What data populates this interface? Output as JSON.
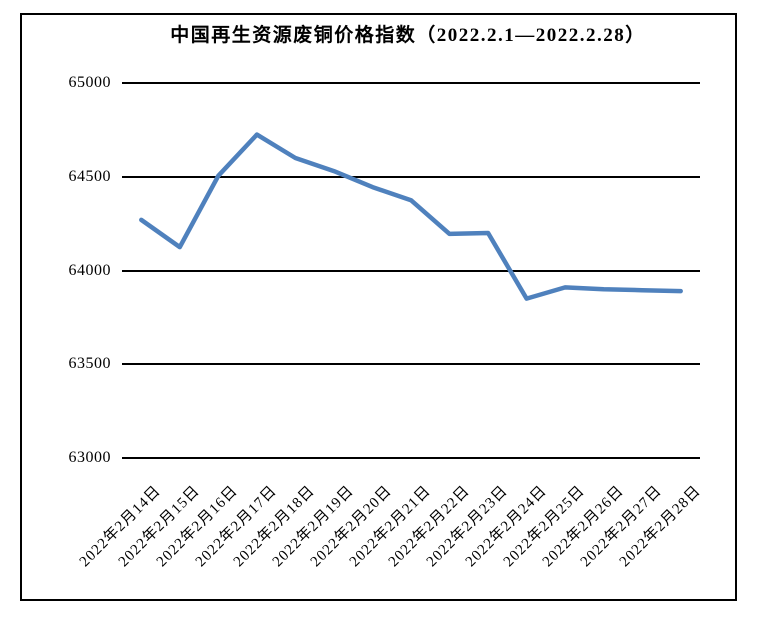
{
  "window": {
    "background": "#ffffff",
    "border_color": "#000000"
  },
  "chart_data": {
    "type": "line",
    "title": "中国再生资源废铜价格指数（2022.2.1—2022.2.28）",
    "categories": [
      "2022年2月14日",
      "2022年2月15日",
      "2022年2月16日",
      "2022年2月17日",
      "2022年2月18日",
      "2022年2月19日",
      "2022年2月20日",
      "2022年2月21日",
      "2022年2月22日",
      "2022年2月23日",
      "2022年2月24日",
      "2022年2月25日",
      "2022年2月26日",
      "2022年2月27日",
      "2022年2月28日"
    ],
    "values": [
      64270,
      64125,
      64505,
      64725,
      64600,
      64530,
      64445,
      64375,
      64195,
      64200,
      63850,
      63910,
      63900,
      63895,
      63890
    ],
    "xlabel": "",
    "ylabel": "",
    "ylim": [
      63000,
      65000
    ],
    "y_ticks": [
      63000,
      63500,
      64000,
      64500,
      65000
    ],
    "grid": "horizontal",
    "legend": "none",
    "line_color": "#4F81BD",
    "gridline_color": "#000000",
    "text_color": "#000000"
  }
}
